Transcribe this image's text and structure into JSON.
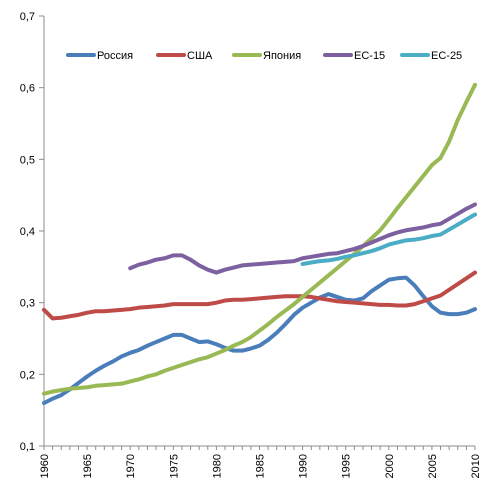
{
  "chart_data": {
    "type": "line",
    "title": "",
    "xlabel": "",
    "ylabel": "",
    "xlim": [
      1960,
      2010
    ],
    "ylim": [
      0.1,
      0.7
    ],
    "x_ticks": [
      1960,
      1965,
      1970,
      1975,
      1980,
      1985,
      1990,
      1995,
      2000,
      2005,
      2010
    ],
    "x_tick_labels": [
      "1960",
      "1965",
      "1970",
      "1975",
      "1980",
      "1985",
      "1990",
      "1995",
      "2000",
      "2005",
      "2010"
    ],
    "y_ticks": [
      0.1,
      0.2,
      0.3,
      0.4,
      0.5,
      0.6,
      0.7
    ],
    "y_tick_labels": [
      "0,1",
      "0,2",
      "0,3",
      "0,4",
      "0,5",
      "0,6",
      "0,7"
    ],
    "grid": false,
    "legend_position": "top",
    "series": [
      {
        "name": "Россия",
        "color": "#4a7ebb",
        "x": [
          1960,
          1961,
          1962,
          1963,
          1964,
          1965,
          1966,
          1967,
          1968,
          1969,
          1970,
          1971,
          1972,
          1973,
          1974,
          1975,
          1976,
          1977,
          1978,
          1979,
          1980,
          1981,
          1982,
          1983,
          1984,
          1985,
          1986,
          1987,
          1988,
          1989,
          1990,
          1991,
          1992,
          1993,
          1994,
          1995,
          1996,
          1997,
          1998,
          1999,
          2000,
          2001,
          2002,
          2003,
          2004,
          2005,
          2006,
          2007,
          2008,
          2009,
          2010
        ],
        "y": [
          0.16,
          0.166,
          0.171,
          0.179,
          0.188,
          0.197,
          0.205,
          0.212,
          0.218,
          0.225,
          0.23,
          0.234,
          0.24,
          0.245,
          0.25,
          0.255,
          0.255,
          0.25,
          0.245,
          0.246,
          0.242,
          0.237,
          0.233,
          0.233,
          0.236,
          0.24,
          0.248,
          0.258,
          0.27,
          0.283,
          0.293,
          0.3,
          0.307,
          0.312,
          0.308,
          0.304,
          0.303,
          0.306,
          0.316,
          0.324,
          0.332,
          0.334,
          0.335,
          0.324,
          0.309,
          0.295,
          0.286,
          0.284,
          0.284,
          0.286,
          0.291
        ]
      },
      {
        "name": "США",
        "color": "#be4b48",
        "x": [
          1960,
          1961,
          1962,
          1963,
          1964,
          1965,
          1966,
          1967,
          1968,
          1969,
          1970,
          1971,
          1972,
          1973,
          1974,
          1975,
          1976,
          1977,
          1978,
          1979,
          1980,
          1981,
          1982,
          1983,
          1984,
          1985,
          1986,
          1987,
          1988,
          1989,
          1990,
          1991,
          1992,
          1993,
          1994,
          1995,
          1996,
          1997,
          1998,
          1999,
          2000,
          2001,
          2002,
          2003,
          2004,
          2005,
          2006,
          2007,
          2008,
          2009,
          2010
        ],
        "y": [
          0.29,
          0.278,
          0.279,
          0.281,
          0.283,
          0.286,
          0.288,
          0.288,
          0.289,
          0.29,
          0.291,
          0.293,
          0.294,
          0.295,
          0.296,
          0.298,
          0.298,
          0.298,
          0.298,
          0.298,
          0.3,
          0.303,
          0.304,
          0.304,
          0.305,
          0.306,
          0.307,
          0.308,
          0.309,
          0.309,
          0.309,
          0.308,
          0.306,
          0.304,
          0.302,
          0.301,
          0.3,
          0.299,
          0.298,
          0.297,
          0.297,
          0.296,
          0.296,
          0.298,
          0.302,
          0.306,
          0.31,
          0.318,
          0.326,
          0.334,
          0.342
        ]
      },
      {
        "name": "Япония",
        "color": "#98b954",
        "x": [
          1960,
          1961,
          1962,
          1963,
          1964,
          1965,
          1966,
          1967,
          1968,
          1969,
          1970,
          1971,
          1972,
          1973,
          1974,
          1975,
          1976,
          1977,
          1978,
          1979,
          1980,
          1981,
          1982,
          1983,
          1984,
          1985,
          1986,
          1987,
          1988,
          1989,
          1990,
          1991,
          1992,
          1993,
          1994,
          1995,
          1996,
          1997,
          1998,
          1999,
          2000,
          2001,
          2002,
          2003,
          2004,
          2005,
          2006,
          2007,
          2008,
          2009,
          2010
        ],
        "y": [
          0.173,
          0.176,
          0.178,
          0.18,
          0.181,
          0.182,
          0.184,
          0.185,
          0.186,
          0.187,
          0.19,
          0.193,
          0.197,
          0.2,
          0.205,
          0.209,
          0.213,
          0.217,
          0.221,
          0.224,
          0.229,
          0.234,
          0.24,
          0.245,
          0.252,
          0.261,
          0.27,
          0.28,
          0.289,
          0.298,
          0.308,
          0.318,
          0.328,
          0.338,
          0.348,
          0.358,
          0.368,
          0.379,
          0.39,
          0.401,
          0.416,
          0.432,
          0.447,
          0.462,
          0.477,
          0.492,
          0.502,
          0.525,
          0.555,
          0.58,
          0.604
        ]
      },
      {
        "name": "ЕС-15",
        "color": "#7d60a0",
        "x": [
          1970,
          1971,
          1972,
          1973,
          1974,
          1975,
          1976,
          1977,
          1978,
          1979,
          1980,
          1981,
          1982,
          1983,
          1984,
          1985,
          1986,
          1987,
          1988,
          1989,
          1990,
          1991,
          1992,
          1993,
          1994,
          1995,
          1996,
          1997,
          1998,
          1999,
          2000,
          2001,
          2002,
          2003,
          2004,
          2005,
          2006,
          2007,
          2008,
          2009,
          2010
        ],
        "y": [
          0.348,
          0.353,
          0.356,
          0.36,
          0.362,
          0.366,
          0.366,
          0.36,
          0.352,
          0.346,
          0.342,
          0.346,
          0.349,
          0.352,
          0.353,
          0.354,
          0.355,
          0.356,
          0.357,
          0.358,
          0.362,
          0.364,
          0.366,
          0.368,
          0.369,
          0.372,
          0.375,
          0.379,
          0.384,
          0.389,
          0.394,
          0.398,
          0.401,
          0.403,
          0.405,
          0.408,
          0.41,
          0.417,
          0.424,
          0.431,
          0.437
        ]
      },
      {
        "name": "ЕС-25",
        "color": "#4bacc6",
        "x": [
          1990,
          1991,
          1992,
          1993,
          1994,
          1995,
          1996,
          1997,
          1998,
          1999,
          2000,
          2001,
          2002,
          2003,
          2004,
          2005,
          2006,
          2007,
          2008,
          2009,
          2010
        ],
        "y": [
          0.354,
          0.356,
          0.358,
          0.359,
          0.361,
          0.364,
          0.366,
          0.369,
          0.372,
          0.376,
          0.381,
          0.384,
          0.387,
          0.388,
          0.39,
          0.393,
          0.395,
          0.402,
          0.409,
          0.416,
          0.423
        ]
      }
    ]
  }
}
